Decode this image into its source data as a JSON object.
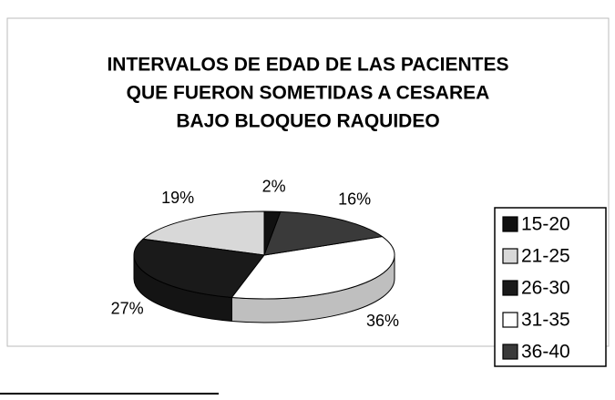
{
  "chart_data": {
    "type": "pie3d",
    "title": [
      "INTERVALOS DE EDAD DE LAS PACIENTES",
      "QUE FUERON SOMETIDAS A CESAREA",
      "BAJO BLOQUEO RAQUIDEO"
    ],
    "categories": [
      "15-20",
      "21-25",
      "26-30",
      "31-35",
      "36-40"
    ],
    "values": [
      2,
      19,
      27,
      36,
      16
    ],
    "value_labels": [
      "2%",
      "19%",
      "27%",
      "36%",
      "16%"
    ],
    "colors": [
      "#111111",
      "#d8d8d8",
      "#1a1a1a",
      "#ffffff",
      "#3a3a3a"
    ],
    "legend": "right"
  }
}
